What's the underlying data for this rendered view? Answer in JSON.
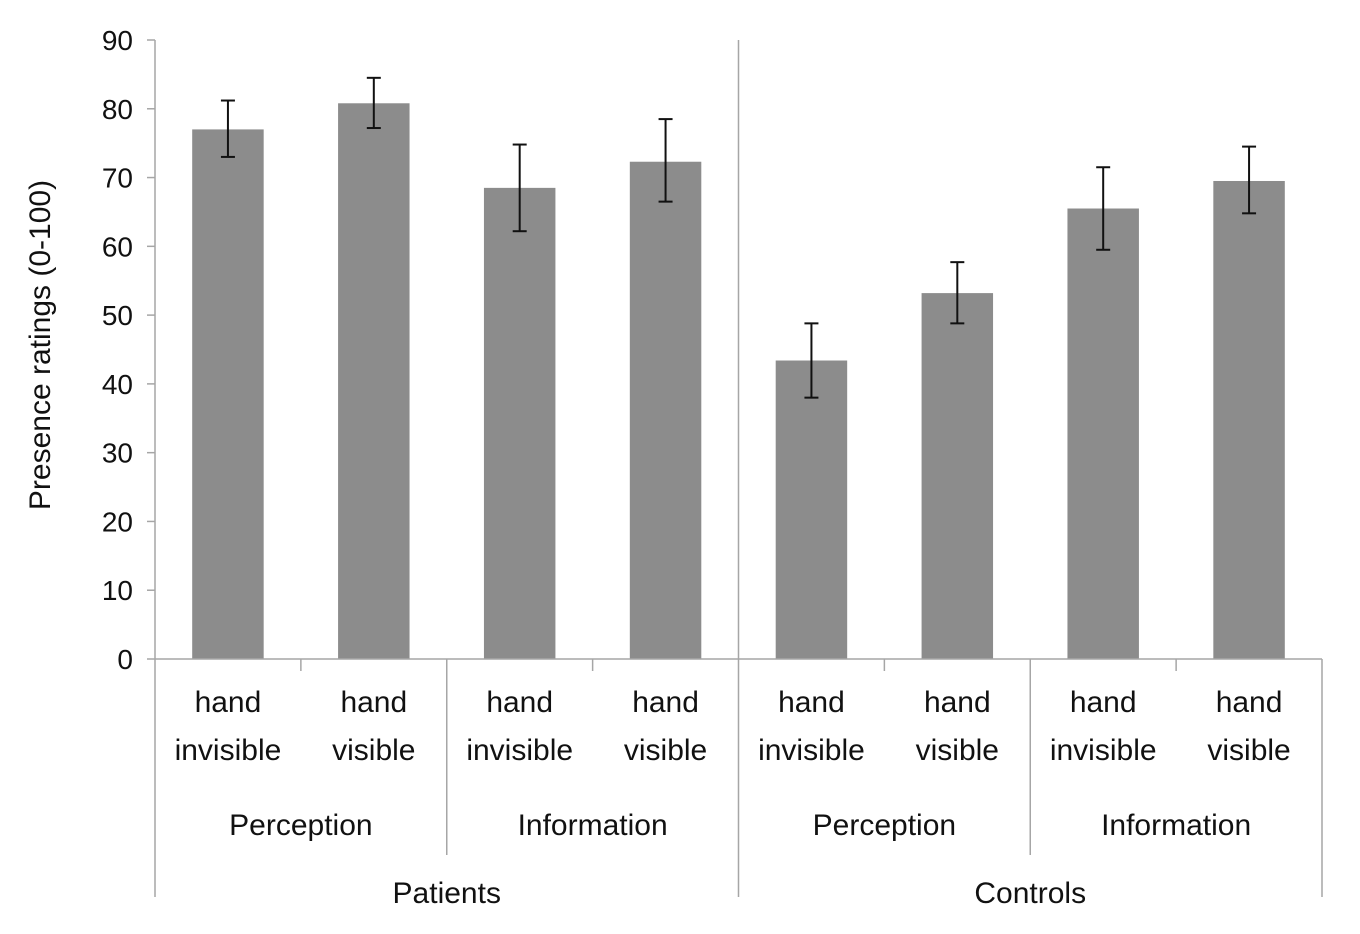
{
  "chart_data": {
    "type": "bar",
    "ylabel": "Presence ratings (0-100)",
    "ylim": [
      0,
      90
    ],
    "yticks": [
      "0",
      "10",
      "20",
      "30",
      "40",
      "50",
      "60",
      "70",
      "80",
      "90"
    ],
    "grid": false,
    "legend": "none",
    "bar_color": "#8c8c8c",
    "groups": [
      {
        "name": "Patients",
        "subgroups": [
          {
            "name": "Perception",
            "bars": [
              {
                "line1": "hand",
                "line2": "invisible",
                "value": 77,
                "err_low": 73,
                "err_high": 81.2
              },
              {
                "line1": "hand",
                "line2": "visible",
                "value": 80.8,
                "err_low": 77.2,
                "err_high": 84.5
              }
            ]
          },
          {
            "name": "Information",
            "bars": [
              {
                "line1": "hand",
                "line2": "invisible",
                "value": 68.5,
                "err_low": 62.2,
                "err_high": 74.8
              },
              {
                "line1": "hand",
                "line2": "visible",
                "value": 72.3,
                "err_low": 66.5,
                "err_high": 78.5
              }
            ]
          }
        ]
      },
      {
        "name": "Controls",
        "subgroups": [
          {
            "name": "Perception",
            "bars": [
              {
                "line1": "hand",
                "line2": "invisible",
                "value": 43.4,
                "err_low": 38,
                "err_high": 48.8
              },
              {
                "line1": "hand",
                "line2": "visible",
                "value": 53.2,
                "err_low": 48.8,
                "err_high": 57.7
              }
            ]
          },
          {
            "name": "Information",
            "bars": [
              {
                "line1": "hand",
                "line2": "invisible",
                "value": 65.5,
                "err_low": 59.5,
                "err_high": 71.5
              },
              {
                "line1": "hand",
                "line2": "visible",
                "value": 69.5,
                "err_low": 64.8,
                "err_high": 74.5
              }
            ]
          }
        ]
      }
    ]
  }
}
